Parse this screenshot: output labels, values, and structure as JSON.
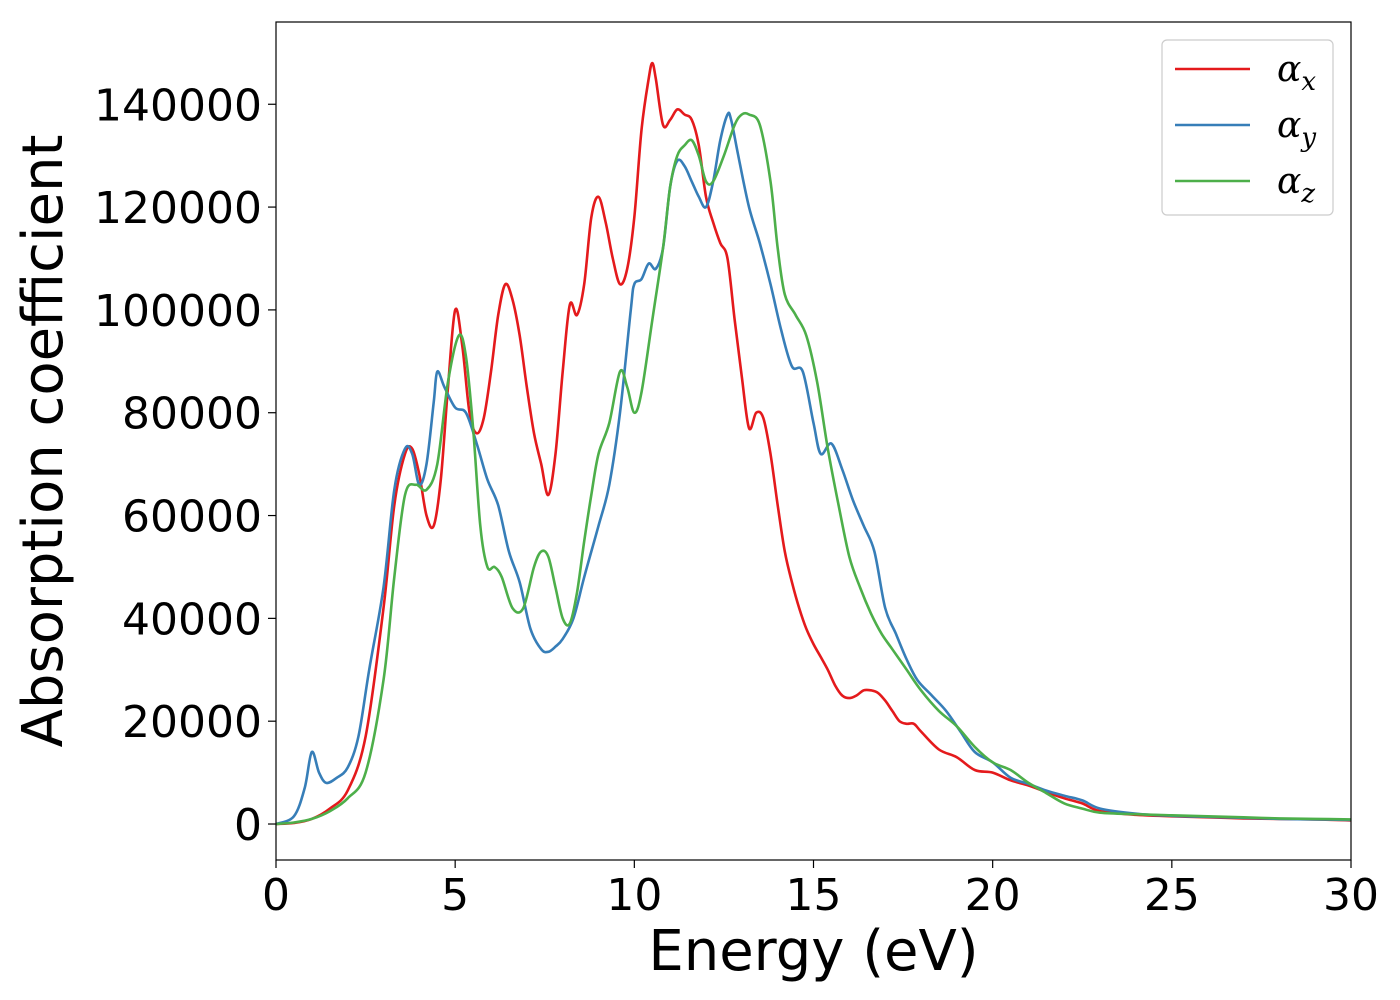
{
  "chart_data": {
    "type": "line",
    "xlabel": "Energy (eV)",
    "ylabel": "Absorption coefficient",
    "xlim": [
      0,
      30
    ],
    "ylim": [
      -7000,
      156000
    ],
    "xticks": [
      0,
      5,
      10,
      15,
      20,
      25,
      30
    ],
    "yticks": [
      0,
      20000,
      40000,
      60000,
      80000,
      100000,
      120000,
      140000
    ],
    "grid": false,
    "legend_position": "top-right",
    "series": [
      {
        "name": "α",
        "sub": "x",
        "color": "#e41a1c",
        "x": [
          0,
          0.5,
          1,
          1.5,
          2,
          2.5,
          3,
          3.3,
          3.6,
          3.8,
          4,
          4.2,
          4.4,
          4.6,
          4.8,
          5,
          5.2,
          5.4,
          5.6,
          5.8,
          6,
          6.2,
          6.4,
          6.6,
          6.8,
          7,
          7.2,
          7.4,
          7.6,
          7.8,
          8,
          8.2,
          8.4,
          8.6,
          8.8,
          9,
          9.2,
          9.4,
          9.6,
          9.8,
          10,
          10.2,
          10.4,
          10.5,
          10.6,
          10.8,
          11,
          11.2,
          11.4,
          11.6,
          11.8,
          12,
          12.2,
          12.4,
          12.6,
          12.8,
          13,
          13.2,
          13.4,
          13.6,
          13.8,
          14,
          14.2,
          14.4,
          14.6,
          14.8,
          15,
          15.2,
          15.4,
          15.6,
          15.8,
          16,
          16.2,
          16.4,
          16.6,
          16.8,
          17,
          17.2,
          17.4,
          17.6,
          17.8,
          18,
          18.5,
          19,
          19.5,
          20,
          20.5,
          21,
          21.5,
          22,
          22.5,
          23,
          24,
          25,
          26,
          27,
          28,
          29,
          30
        ],
        "y": [
          0,
          200,
          1000,
          3000,
          6500,
          17000,
          42000,
          62000,
          72000,
          73000,
          68000,
          60000,
          58000,
          67000,
          85000,
          100000,
          93000,
          80000,
          76000,
          79000,
          88000,
          99000,
          105000,
          102000,
          95000,
          85000,
          76000,
          70000,
          64000,
          72000,
          88000,
          101000,
          99000,
          105000,
          118000,
          122000,
          117000,
          110000,
          105000,
          108000,
          118000,
          135000,
          145000,
          148000,
          145000,
          136000,
          137000,
          139000,
          138000,
          137000,
          132000,
          122000,
          117000,
          113000,
          110000,
          98000,
          87000,
          77000,
          80000,
          79000,
          72000,
          62000,
          53000,
          47000,
          42000,
          38000,
          35000,
          32500,
          30000,
          27000,
          25000,
          24500,
          25000,
          26000,
          26000,
          25500,
          24000,
          22000,
          20000,
          19500,
          19500,
          18000,
          14500,
          13000,
          10500,
          10000,
          8500,
          7500,
          6200,
          5000,
          4000,
          2500,
          1800,
          1500,
          1300,
          1100,
          1000,
          900,
          700
        ]
      },
      {
        "name": "α",
        "sub": "y",
        "color": "#377eb8",
        "x": [
          0,
          0.5,
          0.8,
          1,
          1.2,
          1.4,
          1.7,
          2,
          2.3,
          2.6,
          3,
          3.3,
          3.6,
          3.8,
          4,
          4.2,
          4.4,
          4.5,
          4.7,
          5,
          5.3,
          5.6,
          5.9,
          6.2,
          6.5,
          6.8,
          7.1,
          7.4,
          7.6,
          7.8,
          8,
          8.3,
          8.6,
          9,
          9.3,
          9.6,
          9.9,
          10,
          10.2,
          10.4,
          10.6,
          10.8,
          11,
          11.2,
          11.4,
          11.6,
          11.8,
          12,
          12.2,
          12.4,
          12.6,
          12.7,
          12.9,
          13.2,
          13.5,
          13.8,
          14.1,
          14.4,
          14.7,
          15,
          15.2,
          15.5,
          15.8,
          16.1,
          16.4,
          16.7,
          17,
          17.3,
          17.6,
          17.9,
          18.3,
          18.7,
          19.1,
          19.5,
          20,
          20.5,
          21,
          21.5,
          22,
          22.5,
          23,
          24,
          25,
          26,
          27,
          28,
          29,
          30
        ],
        "y": [
          0,
          1500,
          7000,
          14000,
          10000,
          8000,
          9000,
          11000,
          17000,
          30000,
          46000,
          65000,
          73000,
          72000,
          66000,
          70000,
          82000,
          88000,
          85000,
          81000,
          80000,
          74000,
          67000,
          62000,
          53000,
          47000,
          38000,
          34000,
          33500,
          34500,
          36000,
          40000,
          48000,
          58000,
          66000,
          80000,
          100000,
          105000,
          106000,
          109000,
          108000,
          112000,
          124000,
          129000,
          128000,
          125000,
          122000,
          120000,
          125000,
          133000,
          138000,
          137000,
          130000,
          120000,
          113000,
          105000,
          96000,
          89000,
          88000,
          78000,
          72000,
          74000,
          69000,
          63000,
          58000,
          53000,
          42000,
          37000,
          32000,
          28000,
          25000,
          22000,
          18000,
          14000,
          12000,
          9000,
          7800,
          6500,
          5500,
          4600,
          3000,
          2000,
          1600,
          1400,
          1200,
          1000,
          900,
          800
        ]
      },
      {
        "name": "α",
        "sub": "z",
        "color": "#4daf4a",
        "x": [
          0,
          0.5,
          1,
          1.5,
          2,
          2.5,
          3,
          3.3,
          3.6,
          3.9,
          4.2,
          4.5,
          4.8,
          5.1,
          5.3,
          5.5,
          5.7,
          5.9,
          6.1,
          6.3,
          6.6,
          6.9,
          7.2,
          7.4,
          7.6,
          7.8,
          8,
          8.2,
          8.4,
          8.6,
          8.8,
          9,
          9.3,
          9.6,
          9.8,
          10,
          10.2,
          10.5,
          10.8,
          11,
          11.2,
          11.4,
          11.6,
          11.8,
          12,
          12.2,
          12.5,
          12.8,
          13,
          13.2,
          13.5,
          13.8,
          14,
          14.2,
          14.5,
          14.8,
          15.1,
          15.4,
          15.7,
          16,
          16.3,
          16.6,
          16.9,
          17.2,
          17.6,
          18,
          18.5,
          19,
          19.5,
          20,
          20.5,
          21,
          21.5,
          22,
          22.5,
          23,
          24,
          25,
          26,
          27,
          28,
          29,
          30
        ],
        "y": [
          0,
          300,
          1000,
          2500,
          5000,
          10000,
          28000,
          48000,
          64000,
          66000,
          65000,
          70000,
          86000,
          95000,
          91000,
          77000,
          58000,
          50000,
          50000,
          48000,
          42000,
          42000,
          50000,
          53000,
          52000,
          46000,
          40000,
          39000,
          45000,
          55000,
          64000,
          72000,
          78000,
          88000,
          85000,
          80000,
          84000,
          98000,
          112000,
          124000,
          130000,
          132000,
          133000,
          130000,
          125000,
          125000,
          130000,
          136000,
          138000,
          138000,
          136000,
          125000,
          112000,
          103000,
          99000,
          95000,
          86000,
          73000,
          62000,
          52000,
          46000,
          41000,
          37000,
          34000,
          30000,
          26000,
          22000,
          19000,
          15000,
          12000,
          10500,
          8000,
          6000,
          4000,
          3000,
          2200,
          1900,
          1700,
          1500,
          1300,
          1100,
          1000,
          900
        ]
      }
    ]
  }
}
